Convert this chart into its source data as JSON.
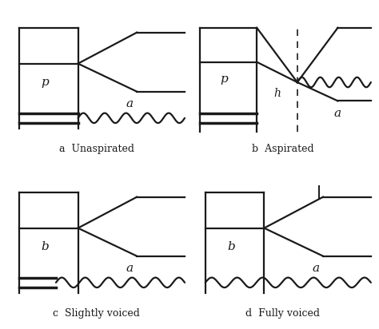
{
  "panels": [
    {
      "label": "a  Unaspirated",
      "type": "unaspirated"
    },
    {
      "label": "b  Aspirated",
      "type": "aspirated"
    },
    {
      "label": "c  Slightly voiced",
      "type": "slightly_voiced"
    },
    {
      "label": "d  Fully voiced",
      "type": "fully_voiced"
    }
  ],
  "line_color": "#1a1a1a",
  "bg_color": "#ffffff",
  "text_color": "#1a1a1a"
}
